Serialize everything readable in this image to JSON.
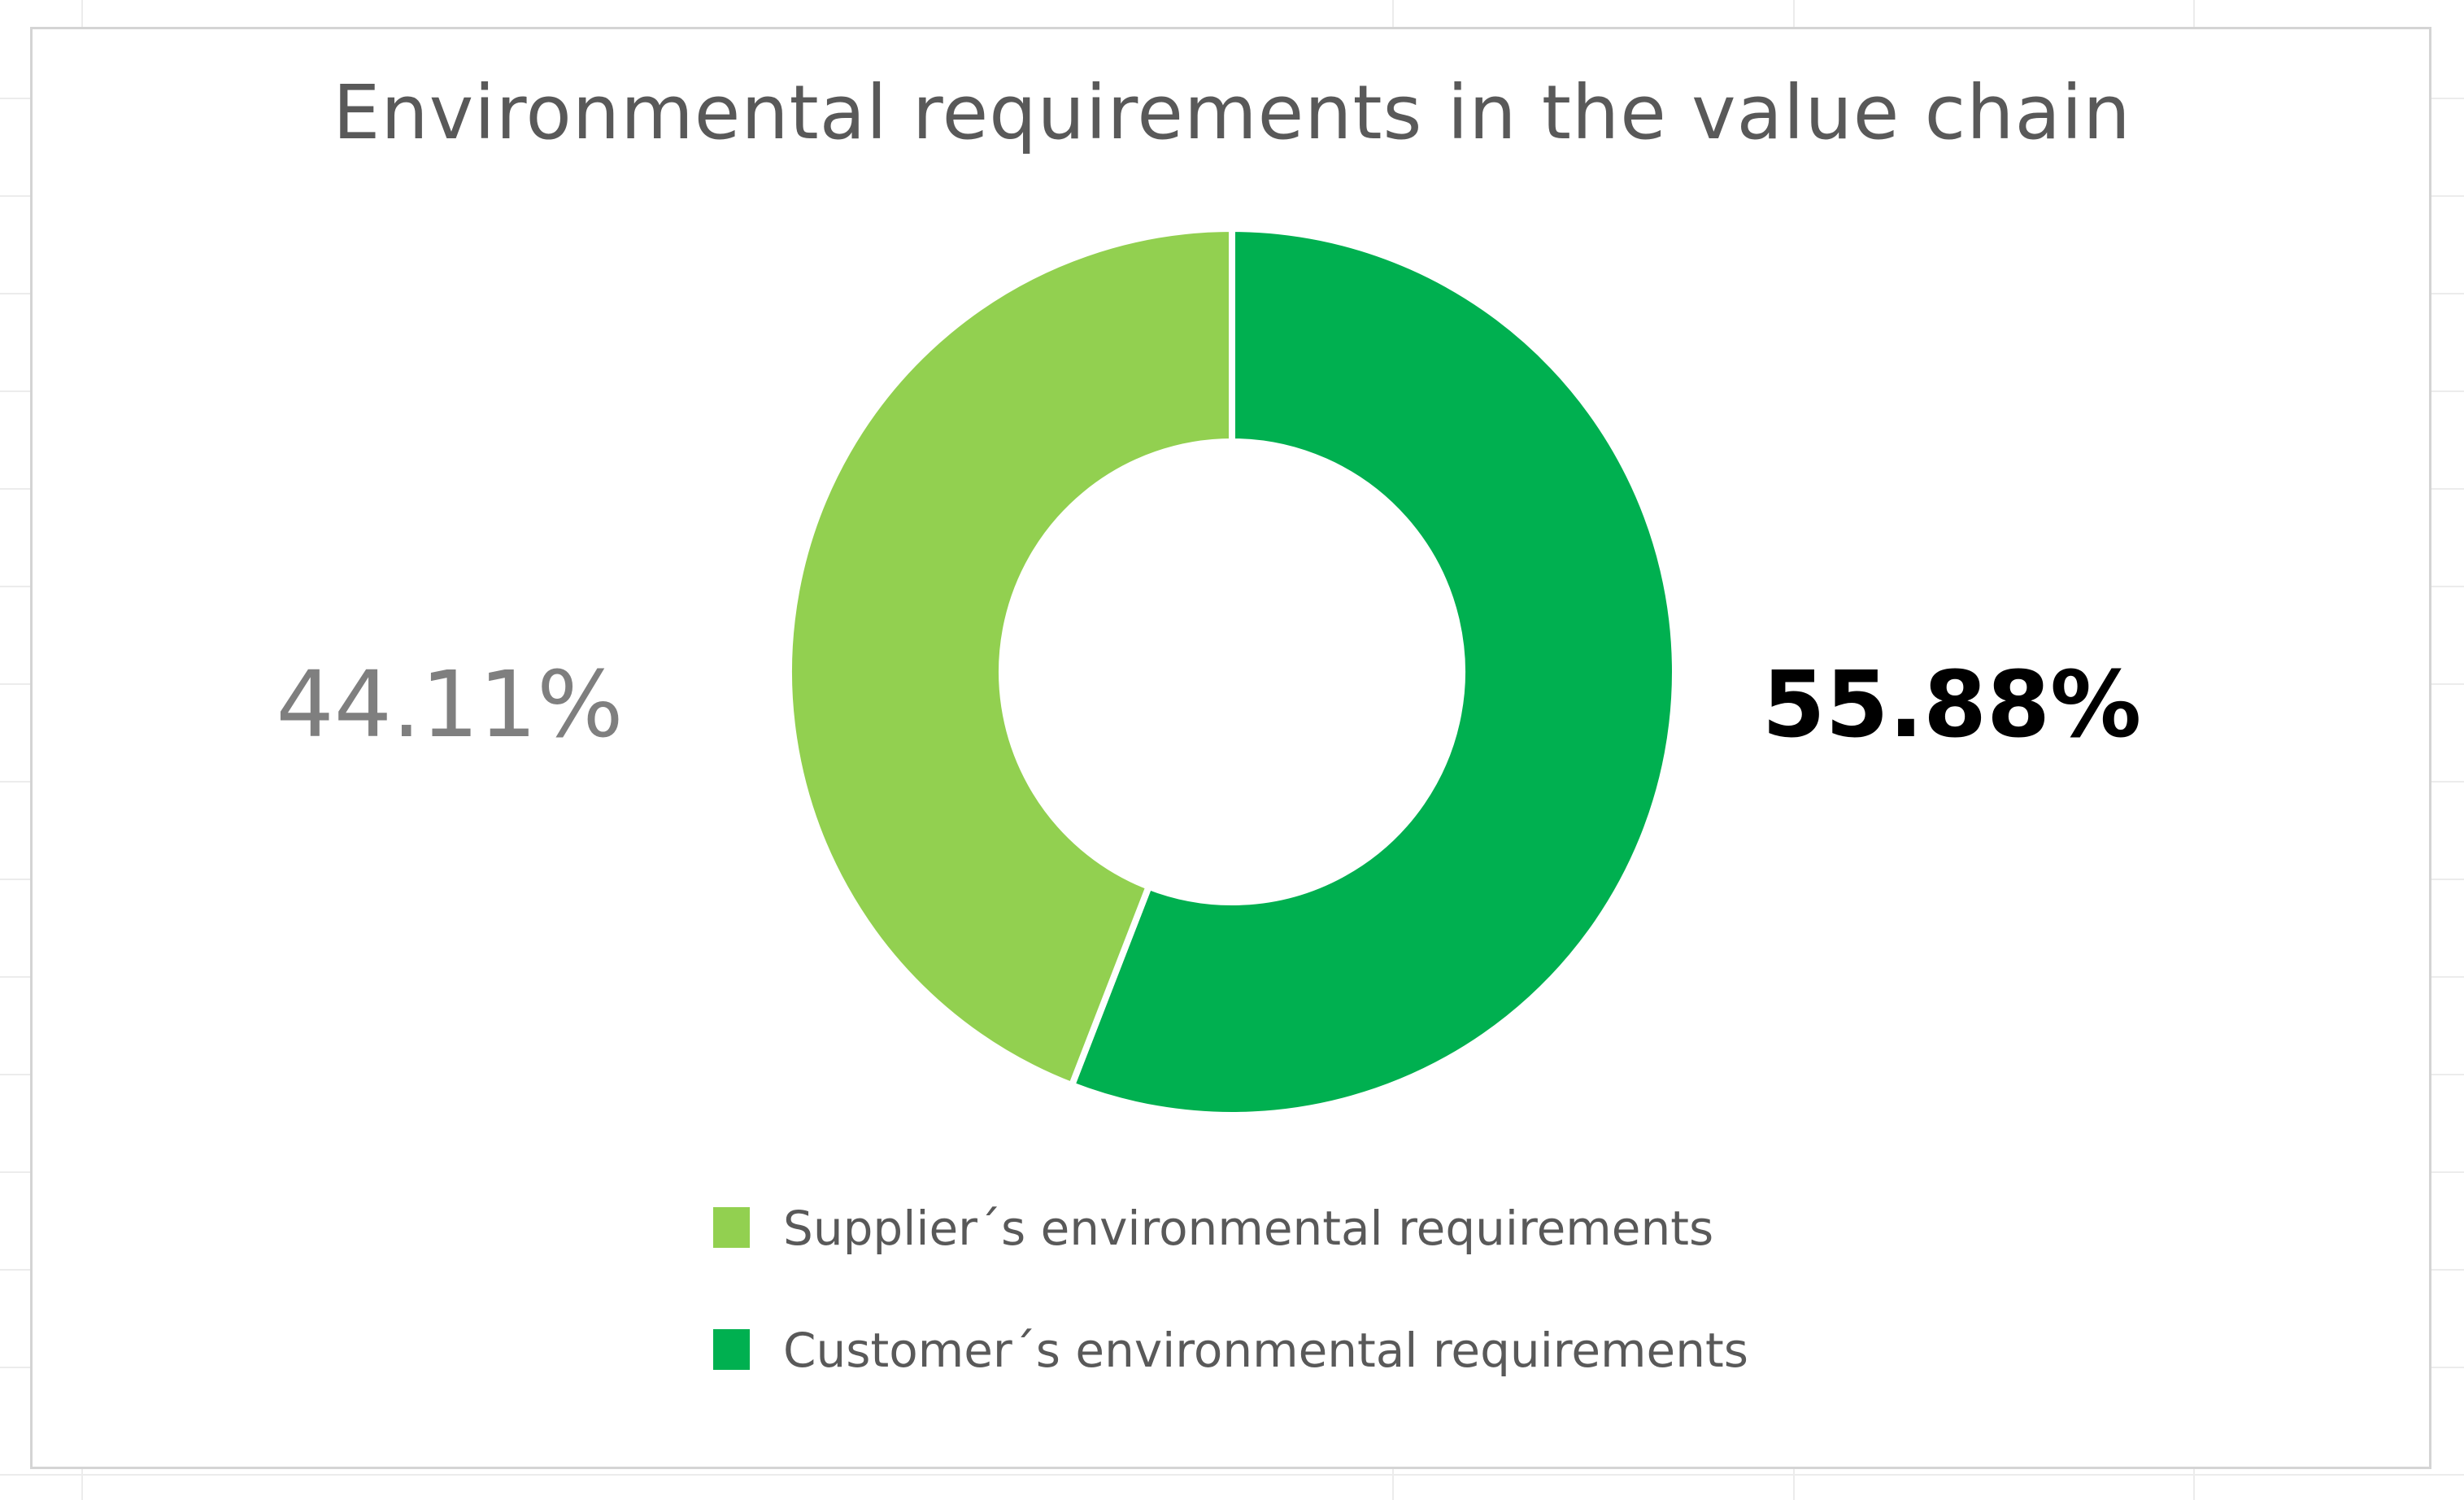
{
  "chart_data": {
    "type": "pie",
    "variant": "donut",
    "title": "Environmental requirements in the value chain",
    "start_angle_deg": 0,
    "direction": "clockwise",
    "series": [
      {
        "name": "Customer´s environmental requirements",
        "value": 55.88,
        "label": "55.88%",
        "color": "#00b050",
        "label_color": "#000000",
        "label_weight": "bold"
      },
      {
        "name": "Supplier´s environmental requirements",
        "value": 44.11,
        "label": "44.11%",
        "color": "#92d050",
        "label_color": "#7f7f7f",
        "label_weight": "normal"
      }
    ],
    "legend": {
      "position": "bottom",
      "order": [
        "Supplier´s environmental requirements",
        "Customer´s environmental requirements"
      ]
    }
  }
}
